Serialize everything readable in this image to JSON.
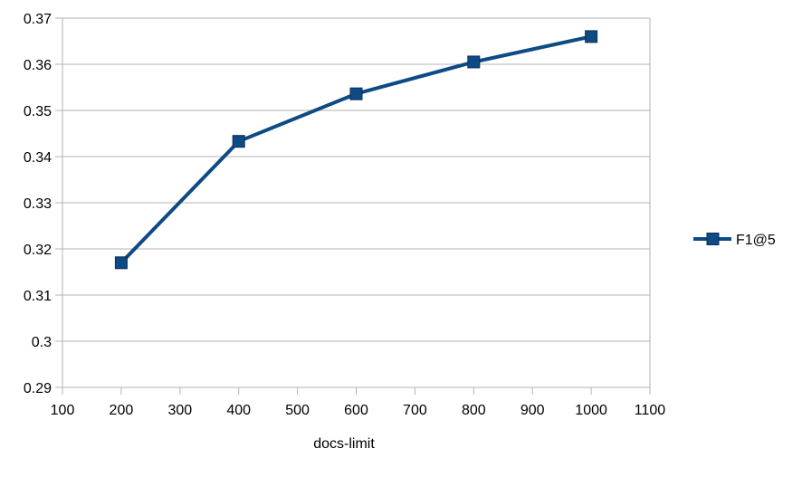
{
  "chart_data": {
    "type": "line",
    "title": "",
    "xlabel": "docs-limit",
    "ylabel": "",
    "xlim": [
      100,
      1100
    ],
    "ylim": [
      0.29,
      0.37
    ],
    "xticks": [
      100,
      200,
      300,
      400,
      500,
      600,
      700,
      800,
      900,
      1000,
      1100
    ],
    "yticks": [
      0.29,
      0.3,
      0.31,
      0.32,
      0.33,
      0.34,
      0.35,
      0.36,
      0.37
    ],
    "xtick_labels": [
      "100",
      "200",
      "300",
      "400",
      "500",
      "600",
      "700",
      "800",
      "900",
      "1000",
      "1100"
    ],
    "ytick_labels": [
      "0.29",
      "0.3",
      "0.31",
      "0.32",
      "0.33",
      "0.34",
      "0.35",
      "0.36",
      "0.37"
    ],
    "grid": "horizontal",
    "legend": "right",
    "series": [
      {
        "name": "F1@5",
        "color": "#0e4a84",
        "marker": "square",
        "x": [
          200,
          400,
          600,
          800,
          1000
        ],
        "y": [
          0.317,
          0.3433,
          0.3536,
          0.3605,
          0.366
        ]
      }
    ]
  }
}
